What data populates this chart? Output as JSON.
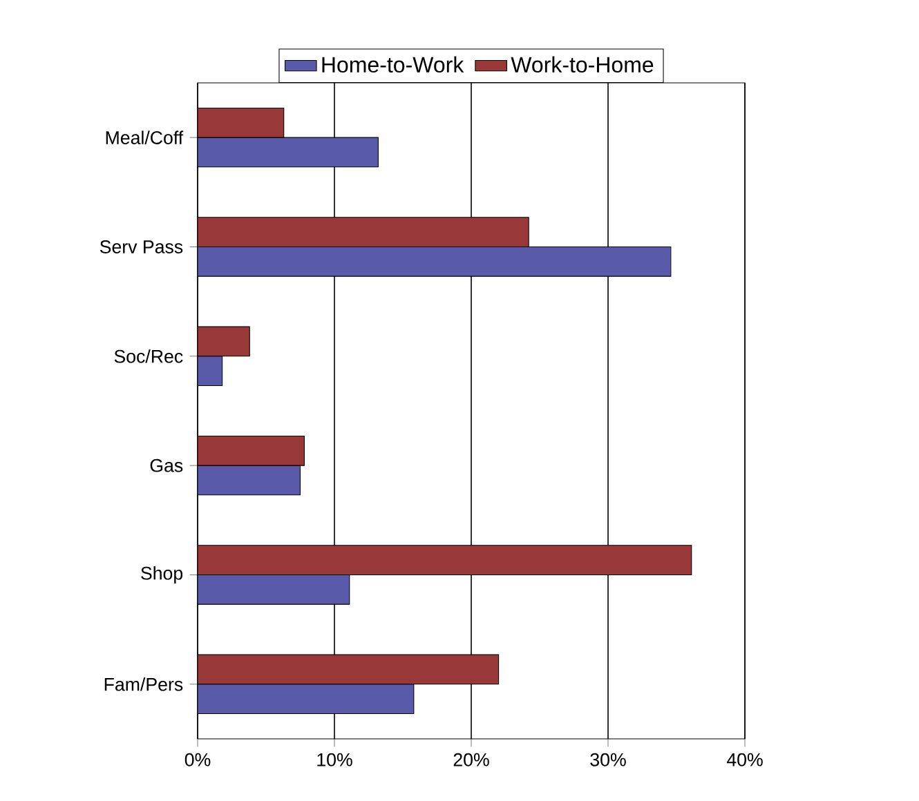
{
  "chart_data": {
    "type": "bar",
    "orientation": "horizontal",
    "categories": [
      "Meal/Coff",
      "Serv Pass",
      "Soc/Rec",
      "Gas",
      "Shop",
      "Fam/Pers"
    ],
    "series": [
      {
        "name": "Home-to-Work",
        "color": "#5a5aaa",
        "values": [
          13.2,
          34.6,
          1.8,
          7.5,
          11.1,
          15.8
        ]
      },
      {
        "name": "Work-to-Home",
        "color": "#993838",
        "values": [
          6.3,
          24.2,
          3.8,
          7.8,
          36.1,
          22.0
        ]
      }
    ],
    "xlim": [
      0,
      40
    ],
    "xticks": [
      {
        "value": 0,
        "label": "0%"
      },
      {
        "value": 10,
        "label": "10%"
      },
      {
        "value": 20,
        "label": "20%"
      },
      {
        "value": 30,
        "label": "30%"
      },
      {
        "value": 40,
        "label": "40%"
      }
    ],
    "grid": "x",
    "legend": "top"
  }
}
